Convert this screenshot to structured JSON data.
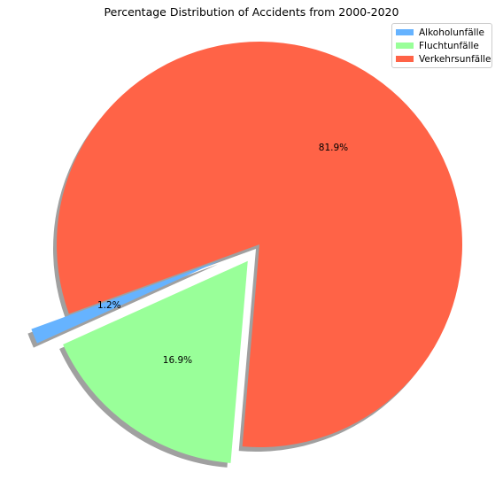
{
  "chart_data": {
    "type": "pie",
    "title": "Percentage Distribution of Accidents from 2000-2020",
    "categories": [
      "Alkoholunfälle",
      "Fluchtunfälle",
      "Verkehrsunfälle"
    ],
    "values": [
      1.2,
      16.9,
      81.9
    ],
    "value_labels": [
      "1.2%",
      "16.9%",
      "81.9%"
    ],
    "colors": [
      "#66b3ff",
      "#99ff99",
      "#ff6347"
    ],
    "explode": [
      0.2,
      0.1,
      0
    ],
    "start_angle_deg": 200,
    "shadow": true,
    "legend_position": "top-right"
  }
}
